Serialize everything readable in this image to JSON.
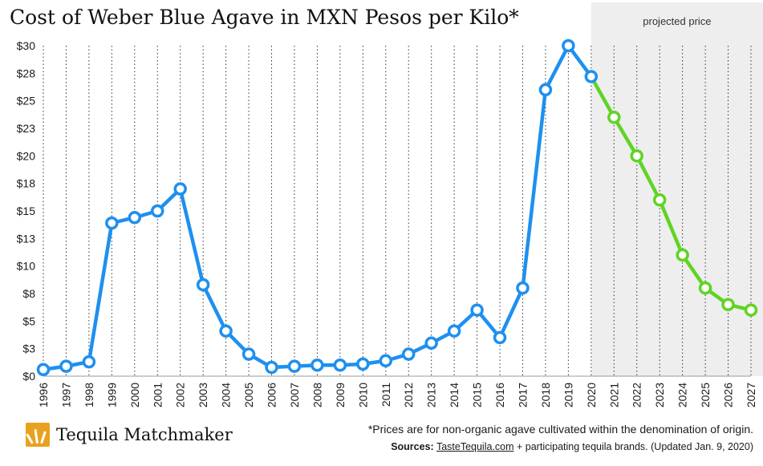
{
  "title": "Cost of Weber Blue Agave in MXN Pesos per Kilo*",
  "projected_label": "projected price",
  "footnote": "*Prices are for non-organic agave cultivated within the denomination of origin.",
  "sources_label": "Sources:",
  "sources_link": "TasteTequila.com",
  "sources_rest": " + participating tequila brands. (Updated Jan. 9, 2020)",
  "brand_name": "Tequila Matchmaker",
  "colors": {
    "historical": "#1e90ef",
    "projected": "#5fd424",
    "projected_band": "#eeeeee",
    "logo": "#e9a21f"
  },
  "chart_data": {
    "type": "line",
    "title": "Cost of Weber Blue Agave in MXN Pesos per Kilo*",
    "xlabel": "",
    "ylabel": "",
    "ylim": [
      0,
      30
    ],
    "grid": "vertical",
    "y_tick_values": [
      0,
      2.5,
      5,
      7.5,
      10,
      12.5,
      15,
      17.5,
      20,
      22.5,
      25,
      27.5,
      30
    ],
    "y_tick_labels": [
      "$0",
      "$3",
      "$5",
      "$8",
      "$10",
      "$13",
      "$15",
      "$18",
      "$20",
      "$23",
      "$25",
      "$28",
      "$30"
    ],
    "x": [
      "1996",
      "1997",
      "1998",
      "1999",
      "2000",
      "2001",
      "2002",
      "2003",
      "2004",
      "2005",
      "2006",
      "2007",
      "2008",
      "2009",
      "2010",
      "2011",
      "2012",
      "2013",
      "2014",
      "2015",
      "2016",
      "2017",
      "2018",
      "2019",
      "2020",
      "2021",
      "2022",
      "2023",
      "2024",
      "2025",
      "2026",
      "2027"
    ],
    "series": [
      {
        "role": "historical",
        "x": [
          "1996",
          "1997",
          "1998",
          "1999",
          "2000",
          "2001",
          "2002",
          "2003",
          "2004",
          "2005",
          "2006",
          "2007",
          "2008",
          "2009",
          "2010",
          "2011",
          "2012",
          "2013",
          "2014",
          "2015",
          "2016",
          "2017",
          "2018",
          "2019",
          "2020"
        ],
        "values": [
          0.6,
          0.9,
          1.3,
          13.9,
          14.4,
          15.0,
          17.0,
          8.3,
          4.1,
          2.0,
          0.8,
          0.9,
          1.0,
          1.0,
          1.1,
          1.4,
          2.0,
          3.0,
          4.1,
          6.0,
          3.5,
          8.0,
          26.0,
          30.0,
          27.2
        ]
      },
      {
        "role": "projected",
        "x": [
          "2020",
          "2021",
          "2022",
          "2023",
          "2024",
          "2025",
          "2026",
          "2027"
        ],
        "values": [
          27.2,
          23.5,
          20.0,
          16.0,
          11.0,
          8.0,
          6.5,
          6.0
        ]
      }
    ],
    "projected_region_start": "2020"
  }
}
